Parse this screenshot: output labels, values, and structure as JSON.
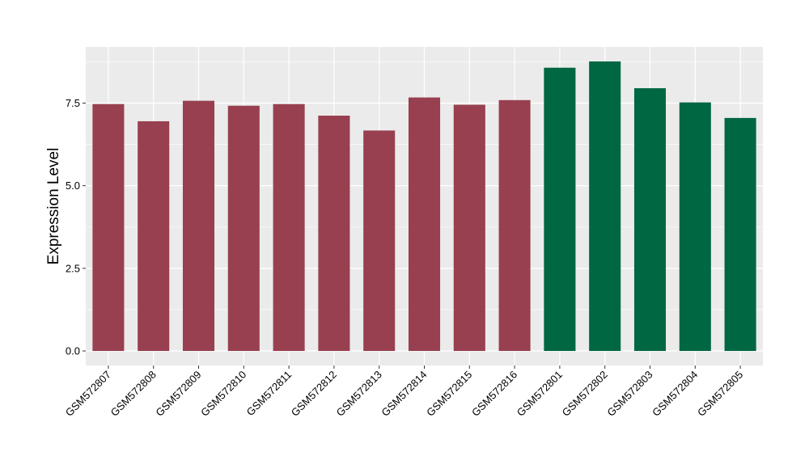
{
  "chart_data": {
    "type": "bar",
    "title": "",
    "xlabel": "",
    "ylabel": "Expression Level",
    "categories": [
      "GSM572807",
      "GSM572808",
      "GSM572809",
      "GSM572810",
      "GSM572811",
      "GSM572812",
      "GSM572813",
      "GSM572814",
      "GSM572815",
      "GSM572816",
      "GSM572801",
      "GSM572802",
      "GSM572803",
      "GSM572804",
      "GSM572805"
    ],
    "values": [
      7.47,
      6.95,
      7.57,
      7.42,
      7.47,
      7.12,
      6.67,
      7.67,
      7.45,
      7.59,
      8.57,
      8.76,
      7.95,
      7.52,
      7.05
    ],
    "bar_colors": [
      "#98404F",
      "#98404F",
      "#98404F",
      "#98404F",
      "#98404F",
      "#98404F",
      "#98404F",
      "#98404F",
      "#98404F",
      "#98404F",
      "#006743",
      "#006743",
      "#006743",
      "#006743",
      "#006743"
    ],
    "ylim": [
      -0.44,
      9.2
    ],
    "yticks": [
      0.0,
      2.5,
      5.0,
      7.5
    ],
    "ytick_labels": [
      "0.0",
      "2.5",
      "5.0",
      "7.5"
    ],
    "grid": true,
    "legend": "none",
    "panel_background": "#EBEBEB",
    "grid_color": "#FFFFFF"
  }
}
